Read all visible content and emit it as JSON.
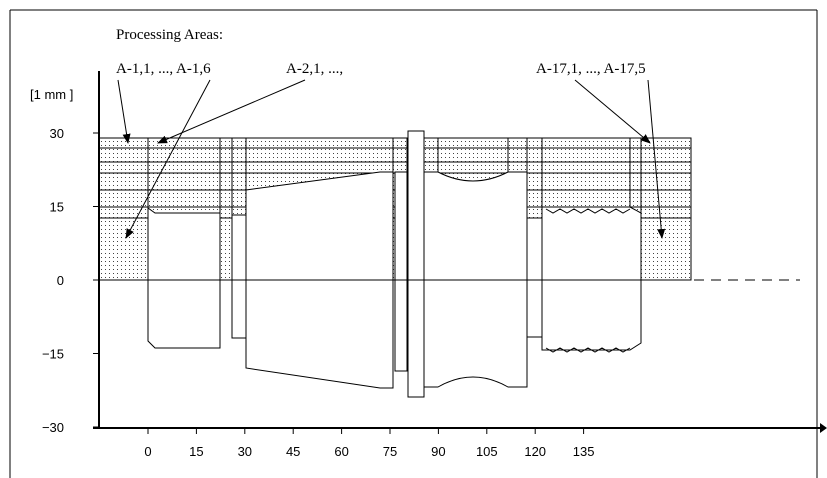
{
  "figure": {
    "title": "Processing Areas:",
    "unit_label": "[1 mm ]",
    "labels": [
      "A-1,1, ..., A-1,6",
      "A-2,1, ...,",
      "A-17,1, ..., A-17,5"
    ],
    "x_ticks": [
      "0",
      "15",
      "30",
      "45",
      "60",
      "75",
      "90",
      "105",
      "120",
      "135"
    ],
    "y_ticks": [
      "30",
      "15",
      "0",
      "−15",
      "−30"
    ],
    "x_tick_values": [
      0,
      15,
      30,
      45,
      60,
      75,
      90,
      105,
      120,
      135
    ],
    "y_tick_values": [
      30,
      15,
      0,
      -15,
      -30
    ]
  }
}
